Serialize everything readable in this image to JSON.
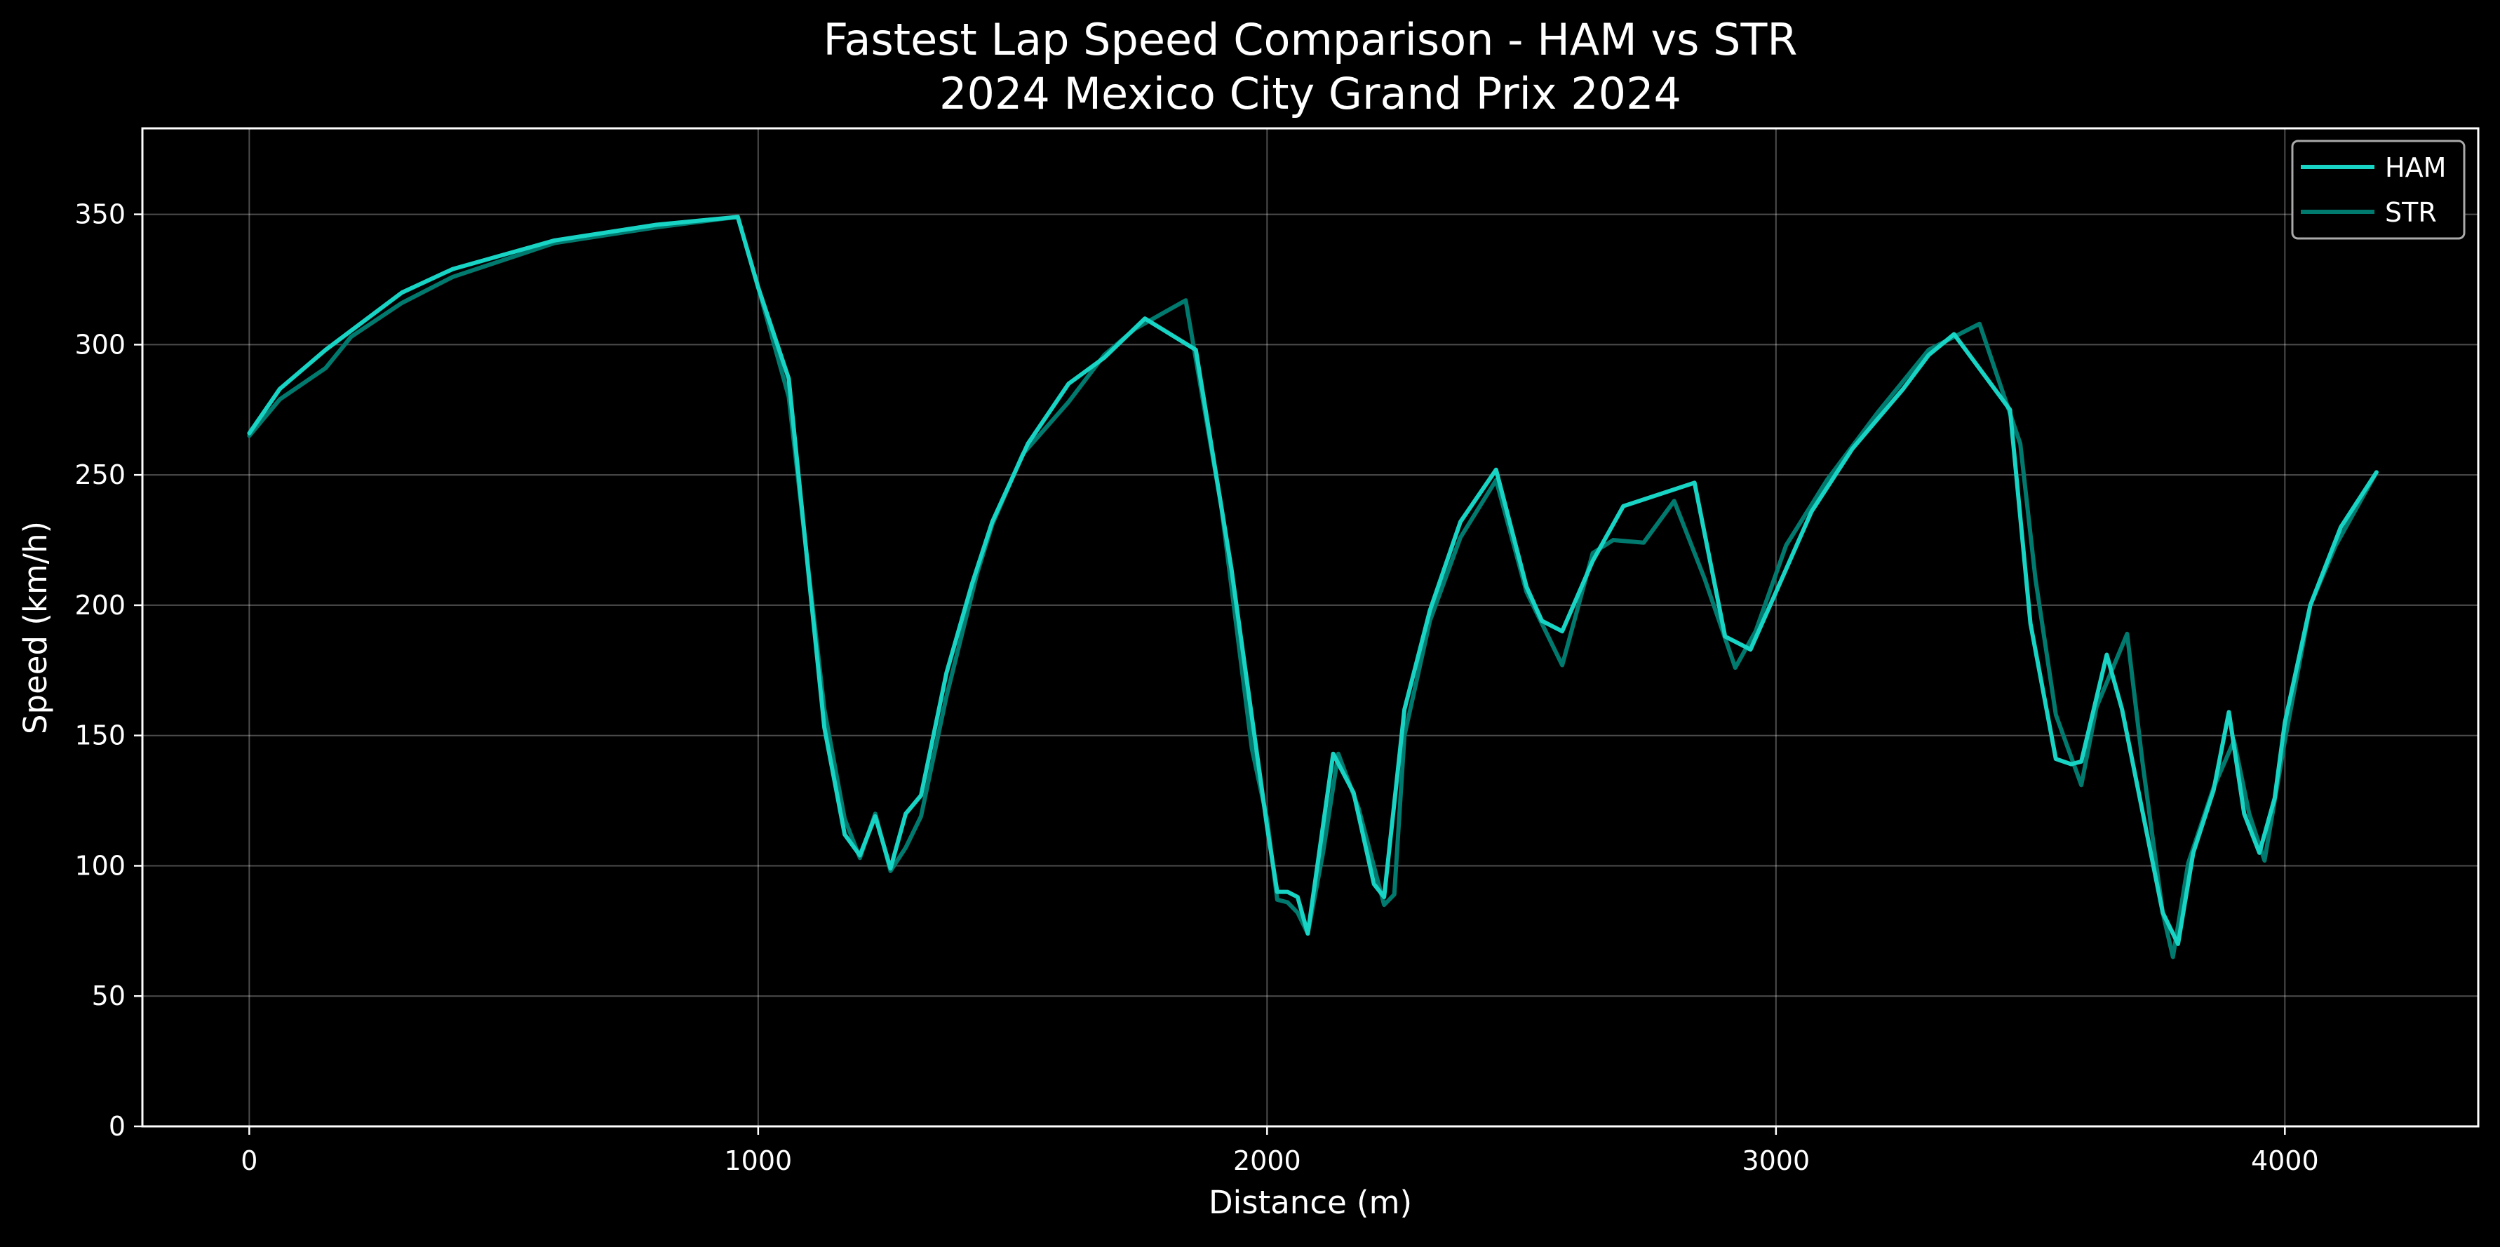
{
  "chart_data": {
    "type": "line",
    "title_lines": [
      "Fastest Lap Speed Comparison - HAM vs STR",
      "2024 Mexico City Grand Prix 2024"
    ],
    "xlabel": "Distance (m)",
    "ylabel": "Speed (km/h)",
    "xlim": [
      -210,
      4380
    ],
    "ylim": [
      0,
      383
    ],
    "x_ticks": [
      0,
      1000,
      2000,
      3000,
      4000
    ],
    "y_ticks": [
      0,
      50,
      100,
      150,
      200,
      250,
      300,
      350
    ],
    "grid": true,
    "legend_position": "top-right",
    "series": [
      {
        "name": "HAM",
        "color": "#17d4c4",
        "points": [
          [
            0,
            266
          ],
          [
            60,
            283
          ],
          [
            150,
            298
          ],
          [
            300,
            320
          ],
          [
            400,
            329
          ],
          [
            600,
            340
          ],
          [
            800,
            346
          ],
          [
            960,
            349
          ],
          [
            1000,
            322
          ],
          [
            1060,
            287
          ],
          [
            1100,
            210
          ],
          [
            1130,
            153
          ],
          [
            1170,
            112
          ],
          [
            1200,
            104
          ],
          [
            1230,
            119
          ],
          [
            1260,
            99
          ],
          [
            1290,
            120
          ],
          [
            1320,
            127
          ],
          [
            1370,
            174
          ],
          [
            1420,
            208
          ],
          [
            1460,
            232
          ],
          [
            1530,
            262
          ],
          [
            1610,
            285
          ],
          [
            1680,
            295
          ],
          [
            1760,
            310
          ],
          [
            1860,
            298
          ],
          [
            1930,
            214
          ],
          [
            2000,
            115
          ],
          [
            2020,
            90
          ],
          [
            2040,
            90
          ],
          [
            2060,
            88
          ],
          [
            2080,
            74
          ],
          [
            2130,
            143
          ],
          [
            2170,
            128
          ],
          [
            2210,
            93
          ],
          [
            2230,
            88
          ],
          [
            2270,
            160
          ],
          [
            2320,
            198
          ],
          [
            2380,
            232
          ],
          [
            2450,
            252
          ],
          [
            2510,
            207
          ],
          [
            2540,
            194
          ],
          [
            2580,
            190
          ],
          [
            2640,
            217
          ],
          [
            2700,
            238
          ],
          [
            2840,
            247
          ],
          [
            2900,
            188
          ],
          [
            2950,
            183
          ],
          [
            3000,
            205
          ],
          [
            3070,
            236
          ],
          [
            3150,
            260
          ],
          [
            3250,
            283
          ],
          [
            3300,
            296
          ],
          [
            3350,
            304
          ],
          [
            3460,
            275
          ],
          [
            3500,
            193
          ],
          [
            3550,
            141
          ],
          [
            3580,
            139
          ],
          [
            3600,
            140
          ],
          [
            3650,
            181
          ],
          [
            3680,
            160
          ],
          [
            3760,
            82
          ],
          [
            3790,
            70
          ],
          [
            3820,
            105
          ],
          [
            3860,
            129
          ],
          [
            3890,
            159
          ],
          [
            3920,
            120
          ],
          [
            3950,
            105
          ],
          [
            3980,
            126
          ],
          [
            4000,
            155
          ],
          [
            4050,
            200
          ],
          [
            4110,
            230
          ],
          [
            4180,
            251
          ]
        ]
      },
      {
        "name": "STR",
        "color": "#007a6e",
        "points": [
          [
            0,
            265
          ],
          [
            60,
            279
          ],
          [
            150,
            291
          ],
          [
            200,
            303
          ],
          [
            300,
            316
          ],
          [
            400,
            326
          ],
          [
            600,
            339
          ],
          [
            800,
            345
          ],
          [
            960,
            349
          ],
          [
            1000,
            322
          ],
          [
            1060,
            280
          ],
          [
            1130,
            160
          ],
          [
            1170,
            118
          ],
          [
            1200,
            103
          ],
          [
            1230,
            120
          ],
          [
            1260,
            98
          ],
          [
            1290,
            107
          ],
          [
            1320,
            119
          ],
          [
            1370,
            165
          ],
          [
            1430,
            212
          ],
          [
            1460,
            231
          ],
          [
            1520,
            258
          ],
          [
            1610,
            278
          ],
          [
            1680,
            296
          ],
          [
            1740,
            306
          ],
          [
            1840,
            317
          ],
          [
            1910,
            238
          ],
          [
            1970,
            145
          ],
          [
            2000,
            118
          ],
          [
            2020,
            87
          ],
          [
            2040,
            86
          ],
          [
            2060,
            82
          ],
          [
            2080,
            74
          ],
          [
            2110,
            105
          ],
          [
            2140,
            143
          ],
          [
            2180,
            122
          ],
          [
            2230,
            85
          ],
          [
            2250,
            89
          ],
          [
            2270,
            150
          ],
          [
            2320,
            194
          ],
          [
            2380,
            226
          ],
          [
            2450,
            248
          ],
          [
            2510,
            205
          ],
          [
            2580,
            177
          ],
          [
            2640,
            220
          ],
          [
            2680,
            225
          ],
          [
            2740,
            224
          ],
          [
            2800,
            240
          ],
          [
            2860,
            210
          ],
          [
            2920,
            176
          ],
          [
            2960,
            190
          ],
          [
            3020,
            223
          ],
          [
            3100,
            248
          ],
          [
            3200,
            274
          ],
          [
            3300,
            298
          ],
          [
            3400,
            308
          ],
          [
            3480,
            262
          ],
          [
            3510,
            210
          ],
          [
            3550,
            158
          ],
          [
            3600,
            131
          ],
          [
            3630,
            161
          ],
          [
            3690,
            189
          ],
          [
            3720,
            140
          ],
          [
            3760,
            82
          ],
          [
            3780,
            65
          ],
          [
            3810,
            101
          ],
          [
            3860,
            130
          ],
          [
            3900,
            148
          ],
          [
            3930,
            120
          ],
          [
            3960,
            102
          ],
          [
            4000,
            148
          ],
          [
            4050,
            200
          ],
          [
            4100,
            223
          ],
          [
            4180,
            251
          ]
        ]
      }
    ]
  }
}
